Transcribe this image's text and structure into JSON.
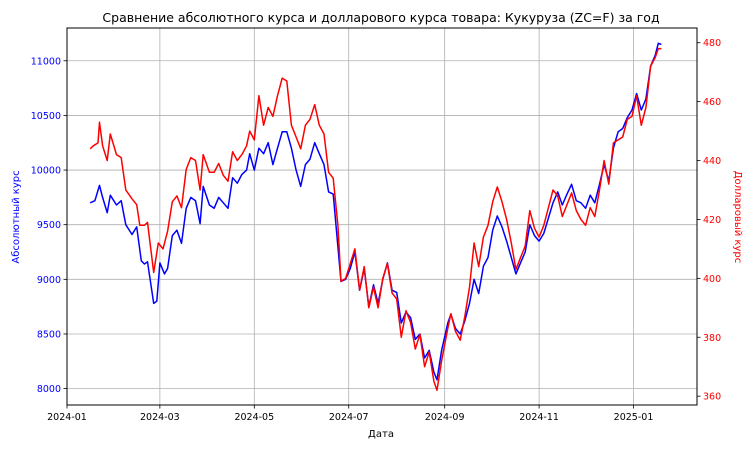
{
  "chart_data": {
    "type": "line",
    "title": "Сравнение абсолютного курса и долларового курса товара: Кукуруза (ZC=F) за год",
    "xlabel": "Дата",
    "ylabel_left": "Абсолютный курс",
    "ylabel_right": "Долларовый курс",
    "colors": {
      "left": "#0000ff",
      "right": "#ff0000"
    },
    "grid": true,
    "xlim": [
      "2024-01-01",
      "2025-02-11"
    ],
    "ylim_left": [
      7850,
      11300
    ],
    "ylim_right": [
      357,
      485
    ],
    "x_ticks": [
      "2024-01",
      "2024-03",
      "2024-05",
      "2024-07",
      "2024-09",
      "2024-11",
      "2025-01"
    ],
    "y_ticks_left": [
      8000,
      8500,
      9000,
      9500,
      10000,
      10500,
      11000
    ],
    "y_ticks_right": [
      360,
      380,
      400,
      420,
      440,
      460,
      480
    ],
    "series": [
      {
        "axis": "left",
        "color": "#0000ff",
        "points": [
          [
            "2024-01-16",
            9700
          ],
          [
            "2024-01-19",
            9720
          ],
          [
            "2024-01-22",
            9860
          ],
          [
            "2024-01-24",
            9750
          ],
          [
            "2024-01-27",
            9610
          ],
          [
            "2024-01-29",
            9770
          ],
          [
            "2024-02-02",
            9680
          ],
          [
            "2024-02-05",
            9720
          ],
          [
            "2024-02-08",
            9500
          ],
          [
            "2024-02-12",
            9410
          ],
          [
            "2024-02-15",
            9480
          ],
          [
            "2024-02-18",
            9170
          ],
          [
            "2024-02-20",
            9140
          ],
          [
            "2024-02-22",
            9160
          ],
          [
            "2024-02-26",
            8780
          ],
          [
            "2024-02-28",
            8800
          ],
          [
            "2024-03-01",
            9150
          ],
          [
            "2024-03-04",
            9050
          ],
          [
            "2024-03-06",
            9100
          ],
          [
            "2024-03-09",
            9400
          ],
          [
            "2024-03-12",
            9450
          ],
          [
            "2024-03-15",
            9330
          ],
          [
            "2024-03-18",
            9650
          ],
          [
            "2024-03-21",
            9750
          ],
          [
            "2024-03-24",
            9720
          ],
          [
            "2024-03-27",
            9510
          ],
          [
            "2024-03-29",
            9850
          ],
          [
            "2024-04-02",
            9680
          ],
          [
            "2024-04-05",
            9650
          ],
          [
            "2024-04-08",
            9750
          ],
          [
            "2024-04-11",
            9700
          ],
          [
            "2024-04-14",
            9650
          ],
          [
            "2024-04-17",
            9930
          ],
          [
            "2024-04-20",
            9880
          ],
          [
            "2024-04-23",
            9960
          ],
          [
            "2024-04-26",
            10000
          ],
          [
            "2024-04-28",
            10150
          ],
          [
            "2024-05-01",
            10000
          ],
          [
            "2024-05-04",
            10200
          ],
          [
            "2024-05-07",
            10150
          ],
          [
            "2024-05-10",
            10250
          ],
          [
            "2024-05-13",
            10050
          ],
          [
            "2024-05-16",
            10200
          ],
          [
            "2024-05-19",
            10350
          ],
          [
            "2024-05-22",
            10350
          ],
          [
            "2024-05-25",
            10200
          ],
          [
            "2024-05-28",
            10000
          ],
          [
            "2024-05-31",
            9850
          ],
          [
            "2024-06-03",
            10050
          ],
          [
            "2024-06-06",
            10100
          ],
          [
            "2024-06-09",
            10250
          ],
          [
            "2024-06-12",
            10150
          ],
          [
            "2024-06-15",
            10050
          ],
          [
            "2024-06-18",
            9800
          ],
          [
            "2024-06-21",
            9780
          ],
          [
            "2024-06-24",
            9300
          ],
          [
            "2024-06-26",
            8980
          ],
          [
            "2024-06-29",
            9000
          ],
          [
            "2024-07-02",
            9100
          ],
          [
            "2024-07-05",
            9250
          ],
          [
            "2024-07-08",
            8900
          ],
          [
            "2024-07-11",
            9100
          ],
          [
            "2024-07-14",
            8750
          ],
          [
            "2024-07-17",
            8950
          ],
          [
            "2024-07-20",
            8780
          ],
          [
            "2024-07-23",
            9000
          ],
          [
            "2024-07-26",
            9150
          ],
          [
            "2024-07-29",
            8900
          ],
          [
            "2024-08-01",
            8880
          ],
          [
            "2024-08-04",
            8600
          ],
          [
            "2024-08-07",
            8700
          ],
          [
            "2024-08-10",
            8650
          ],
          [
            "2024-08-13",
            8450
          ],
          [
            "2024-08-16",
            8500
          ],
          [
            "2024-08-19",
            8280
          ],
          [
            "2024-08-22",
            8350
          ],
          [
            "2024-08-25",
            8150
          ],
          [
            "2024-08-27",
            8080
          ],
          [
            "2024-08-30",
            8350
          ],
          [
            "2024-09-03",
            8600
          ],
          [
            "2024-09-05",
            8680
          ],
          [
            "2024-09-08",
            8550
          ],
          [
            "2024-09-11",
            8500
          ],
          [
            "2024-09-14",
            8620
          ],
          [
            "2024-09-17",
            8780
          ],
          [
            "2024-09-20",
            9000
          ],
          [
            "2024-09-23",
            8870
          ],
          [
            "2024-09-26",
            9120
          ],
          [
            "2024-09-29",
            9200
          ],
          [
            "2024-10-02",
            9450
          ],
          [
            "2024-10-05",
            9580
          ],
          [
            "2024-10-08",
            9480
          ],
          [
            "2024-10-11",
            9350
          ],
          [
            "2024-10-14",
            9200
          ],
          [
            "2024-10-17",
            9050
          ],
          [
            "2024-10-20",
            9150
          ],
          [
            "2024-10-23",
            9250
          ],
          [
            "2024-10-26",
            9500
          ],
          [
            "2024-10-29",
            9400
          ],
          [
            "2024-11-01",
            9350
          ],
          [
            "2024-11-04",
            9420
          ],
          [
            "2024-11-07",
            9560
          ],
          [
            "2024-11-10",
            9700
          ],
          [
            "2024-11-13",
            9800
          ],
          [
            "2024-11-16",
            9680
          ],
          [
            "2024-11-19",
            9780
          ],
          [
            "2024-11-22",
            9870
          ],
          [
            "2024-11-25",
            9720
          ],
          [
            "2024-11-28",
            9700
          ],
          [
            "2024-12-01",
            9650
          ],
          [
            "2024-12-04",
            9770
          ],
          [
            "2024-12-07",
            9700
          ],
          [
            "2024-12-10",
            9870
          ],
          [
            "2024-12-13",
            10050
          ],
          [
            "2024-12-16",
            9900
          ],
          [
            "2024-12-19",
            10200
          ],
          [
            "2024-12-22",
            10350
          ],
          [
            "2024-12-25",
            10380
          ],
          [
            "2024-12-28",
            10480
          ],
          [
            "2024-12-31",
            10550
          ],
          [
            "2025-01-03",
            10700
          ],
          [
            "2025-01-06",
            10550
          ],
          [
            "2025-01-09",
            10650
          ],
          [
            "2025-01-12",
            10950
          ],
          [
            "2025-01-15",
            11050
          ],
          [
            "2025-01-17",
            11160
          ],
          [
            "2025-01-19",
            11150
          ]
        ]
      },
      {
        "axis": "right",
        "color": "#ff0000",
        "points": [
          [
            "2024-01-16",
            444
          ],
          [
            "2024-01-18",
            445
          ],
          [
            "2024-01-21",
            446
          ],
          [
            "2024-01-22",
            453
          ],
          [
            "2024-01-24",
            445
          ],
          [
            "2024-01-27",
            440
          ],
          [
            "2024-01-29",
            449
          ],
          [
            "2024-02-02",
            442
          ],
          [
            "2024-02-05",
            441
          ],
          [
            "2024-02-08",
            430
          ],
          [
            "2024-02-12",
            427
          ],
          [
            "2024-02-15",
            425
          ],
          [
            "2024-02-17",
            418
          ],
          [
            "2024-02-20",
            418
          ],
          [
            "2024-02-22",
            419
          ],
          [
            "2024-02-26",
            402
          ],
          [
            "2024-02-29",
            412
          ],
          [
            "2024-03-03",
            410
          ],
          [
            "2024-03-06",
            416
          ],
          [
            "2024-03-09",
            426
          ],
          [
            "2024-03-12",
            428
          ],
          [
            "2024-03-15",
            424
          ],
          [
            "2024-03-18",
            437
          ],
          [
            "2024-03-21",
            441
          ],
          [
            "2024-03-24",
            440
          ],
          [
            "2024-03-27",
            430
          ],
          [
            "2024-03-29",
            442
          ],
          [
            "2024-04-02",
            436
          ],
          [
            "2024-04-05",
            436
          ],
          [
            "2024-04-08",
            439
          ],
          [
            "2024-04-11",
            435
          ],
          [
            "2024-04-14",
            433
          ],
          [
            "2024-04-17",
            443
          ],
          [
            "2024-04-20",
            440
          ],
          [
            "2024-04-23",
            442
          ],
          [
            "2024-04-26",
            445
          ],
          [
            "2024-04-28",
            450
          ],
          [
            "2024-05-01",
            447
          ],
          [
            "2024-05-04",
            462
          ],
          [
            "2024-05-07",
            452
          ],
          [
            "2024-05-10",
            458
          ],
          [
            "2024-05-13",
            455
          ],
          [
            "2024-05-16",
            462
          ],
          [
            "2024-05-19",
            468
          ],
          [
            "2024-05-22",
            467
          ],
          [
            "2024-05-25",
            452
          ],
          [
            "2024-05-28",
            448
          ],
          [
            "2024-05-31",
            444
          ],
          [
            "2024-06-03",
            452
          ],
          [
            "2024-06-06",
            454
          ],
          [
            "2024-06-09",
            459
          ],
          [
            "2024-06-12",
            452
          ],
          [
            "2024-06-15",
            449
          ],
          [
            "2024-06-18",
            436
          ],
          [
            "2024-06-21",
            434
          ],
          [
            "2024-06-24",
            418
          ],
          [
            "2024-06-26",
            399
          ],
          [
            "2024-06-29",
            400
          ],
          [
            "2024-07-02",
            405
          ],
          [
            "2024-07-05",
            410
          ],
          [
            "2024-07-08",
            396
          ],
          [
            "2024-07-11",
            404
          ],
          [
            "2024-07-14",
            390
          ],
          [
            "2024-07-17",
            397
          ],
          [
            "2024-07-20",
            390
          ],
          [
            "2024-07-23",
            400
          ],
          [
            "2024-07-26",
            405
          ],
          [
            "2024-07-29",
            395
          ],
          [
            "2024-08-01",
            393
          ],
          [
            "2024-08-04",
            380
          ],
          [
            "2024-08-07",
            389
          ],
          [
            "2024-08-10",
            385
          ],
          [
            "2024-08-13",
            376
          ],
          [
            "2024-08-16",
            381
          ],
          [
            "2024-08-19",
            370
          ],
          [
            "2024-08-22",
            375
          ],
          [
            "2024-08-25",
            365
          ],
          [
            "2024-08-27",
            362
          ],
          [
            "2024-08-30",
            372
          ],
          [
            "2024-09-03",
            383
          ],
          [
            "2024-09-05",
            388
          ],
          [
            "2024-09-08",
            382
          ],
          [
            "2024-09-11",
            379
          ],
          [
            "2024-09-14",
            387
          ],
          [
            "2024-09-17",
            397
          ],
          [
            "2024-09-20",
            412
          ],
          [
            "2024-09-23",
            404
          ],
          [
            "2024-09-26",
            414
          ],
          [
            "2024-09-29",
            418
          ],
          [
            "2024-10-02",
            426
          ],
          [
            "2024-10-05",
            431
          ],
          [
            "2024-10-08",
            426
          ],
          [
            "2024-10-11",
            420
          ],
          [
            "2024-10-14",
            412
          ],
          [
            "2024-10-17",
            403
          ],
          [
            "2024-10-20",
            407
          ],
          [
            "2024-10-23",
            411
          ],
          [
            "2024-10-26",
            423
          ],
          [
            "2024-10-29",
            417
          ],
          [
            "2024-11-01",
            414
          ],
          [
            "2024-11-04",
            418
          ],
          [
            "2024-11-07",
            424
          ],
          [
            "2024-11-10",
            430
          ],
          [
            "2024-11-13",
            428
          ],
          [
            "2024-11-16",
            421
          ],
          [
            "2024-11-19",
            425
          ],
          [
            "2024-11-22",
            429
          ],
          [
            "2024-11-25",
            423
          ],
          [
            "2024-11-28",
            420
          ],
          [
            "2024-12-01",
            418
          ],
          [
            "2024-12-04",
            424
          ],
          [
            "2024-12-07",
            421
          ],
          [
            "2024-12-10",
            430
          ],
          [
            "2024-12-13",
            440
          ],
          [
            "2024-12-16",
            432
          ],
          [
            "2024-12-19",
            446
          ],
          [
            "2024-12-22",
            447
          ],
          [
            "2024-12-25",
            448
          ],
          [
            "2024-12-28",
            454
          ],
          [
            "2024-12-31",
            455
          ],
          [
            "2025-01-03",
            462
          ],
          [
            "2025-01-06",
            452
          ],
          [
            "2025-01-09",
            458
          ],
          [
            "2025-01-12",
            472
          ],
          [
            "2025-01-15",
            475
          ],
          [
            "2025-01-17",
            478
          ],
          [
            "2025-01-19",
            478
          ]
        ]
      }
    ]
  }
}
